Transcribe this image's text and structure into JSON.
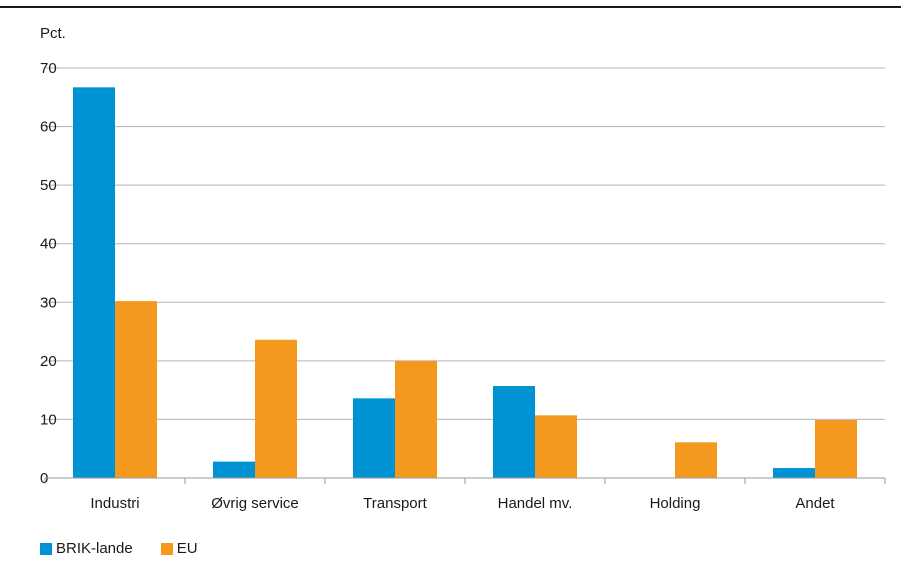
{
  "chart_data": {
    "type": "bar",
    "ylabel": "Pct.",
    "xlabel": "",
    "ylim": [
      0,
      70
    ],
    "yticks": [
      0,
      10,
      20,
      30,
      40,
      50,
      60,
      70
    ],
    "categories": [
      "Industri",
      "Øvrig service",
      "Transport",
      "Handel mv.",
      "Holding",
      "Andet"
    ],
    "series": [
      {
        "name": "BRIK-lande",
        "color": "#0093d3",
        "values": [
          66.7,
          2.8,
          13.6,
          15.7,
          0,
          1.7
        ]
      },
      {
        "name": "EU",
        "color": "#f5981e",
        "values": [
          30.2,
          23.6,
          20.0,
          10.7,
          6.1,
          9.9
        ]
      }
    ],
    "grid": "horizontal",
    "legend_position": "bottom-left"
  }
}
